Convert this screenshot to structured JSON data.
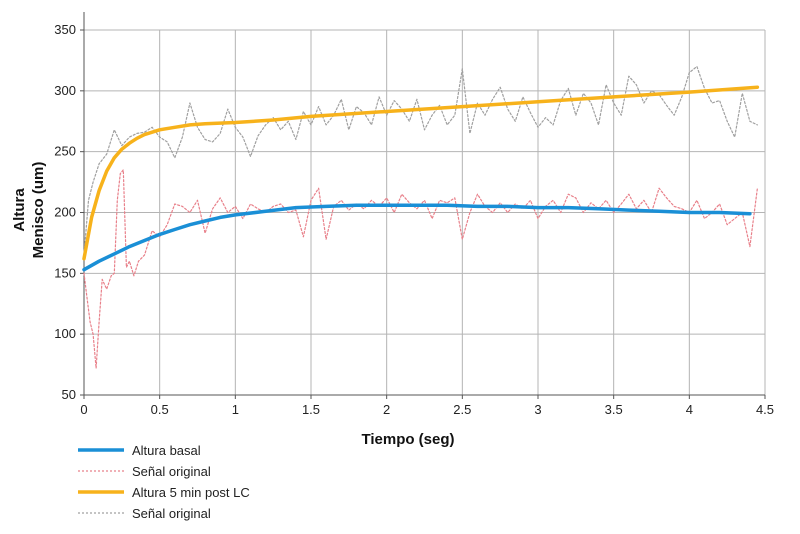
{
  "chart_data": {
    "type": "line",
    "title": "",
    "xlabel": "Tiempo (seg)",
    "ylabel_lines": [
      "Altura",
      "Menisco (um)"
    ],
    "xlim": [
      0,
      4.5
    ],
    "ylim": [
      50,
      350
    ],
    "x_ticks": [
      0,
      0.5,
      1,
      1.5,
      2,
      2.5,
      3,
      3.5,
      4,
      4.5
    ],
    "y_ticks": [
      50,
      100,
      150,
      200,
      250,
      300,
      350
    ],
    "x_tick_labels": [
      "0",
      "0.5",
      "1",
      "1.5",
      "2",
      "2.5",
      "3",
      "3.5",
      "4",
      "4.5"
    ],
    "y_tick_labels": [
      "50",
      "100",
      "150",
      "200",
      "250",
      "300",
      "350"
    ],
    "grid": true,
    "legend_position": "bottom-left",
    "series": [
      {
        "name": "Altura basal",
        "color": "#1a8fd6",
        "style": "solid",
        "x": [
          0,
          0.1,
          0.2,
          0.3,
          0.4,
          0.5,
          0.6,
          0.7,
          0.8,
          0.9,
          1.0,
          1.2,
          1.4,
          1.6,
          1.8,
          2.0,
          2.2,
          2.4,
          2.6,
          2.8,
          3.0,
          3.2,
          3.4,
          3.6,
          3.8,
          4.0,
          4.2,
          4.4
        ],
        "y": [
          153,
          160,
          166,
          172,
          177,
          182,
          186,
          190,
          193,
          196,
          198,
          201,
          204,
          205,
          206,
          206,
          206,
          206,
          205,
          205,
          204,
          204,
          203,
          202,
          201,
          200,
          200,
          199
        ]
      },
      {
        "name": "Señal original",
        "color": "#e8808a",
        "style": "dotted",
        "x": [
          0,
          0.02,
          0.04,
          0.06,
          0.08,
          0.1,
          0.12,
          0.15,
          0.18,
          0.2,
          0.22,
          0.24,
          0.26,
          0.28,
          0.3,
          0.33,
          0.36,
          0.4,
          0.45,
          0.5,
          0.55,
          0.6,
          0.65,
          0.7,
          0.75,
          0.8,
          0.85,
          0.9,
          0.95,
          1.0,
          1.05,
          1.1,
          1.15,
          1.2,
          1.25,
          1.3,
          1.35,
          1.4,
          1.45,
          1.5,
          1.55,
          1.6,
          1.65,
          1.7,
          1.75,
          1.8,
          1.85,
          1.9,
          1.95,
          2.0,
          2.05,
          2.1,
          2.15,
          2.2,
          2.25,
          2.3,
          2.35,
          2.4,
          2.45,
          2.5,
          2.55,
          2.6,
          2.65,
          2.7,
          2.75,
          2.8,
          2.85,
          2.9,
          2.95,
          3.0,
          3.05,
          3.1,
          3.15,
          3.2,
          3.25,
          3.3,
          3.35,
          3.4,
          3.45,
          3.5,
          3.55,
          3.6,
          3.65,
          3.7,
          3.75,
          3.8,
          3.85,
          3.9,
          3.95,
          4.0,
          4.05,
          4.1,
          4.15,
          4.2,
          4.25,
          4.3,
          4.35,
          4.4,
          4.45
        ],
        "y": [
          150,
          130,
          110,
          100,
          72,
          110,
          145,
          137,
          148,
          150,
          210,
          232,
          235,
          155,
          160,
          148,
          160,
          165,
          185,
          180,
          190,
          207,
          205,
          200,
          210,
          183,
          203,
          212,
          200,
          205,
          195,
          207,
          203,
          200,
          205,
          207,
          200,
          202,
          180,
          210,
          220,
          178,
          205,
          210,
          202,
          207,
          203,
          210,
          205,
          212,
          200,
          215,
          208,
          203,
          210,
          195,
          210,
          208,
          212,
          178,
          200,
          215,
          205,
          200,
          208,
          200,
          207,
          203,
          210,
          195,
          205,
          210,
          200,
          215,
          212,
          200,
          208,
          203,
          210,
          200,
          207,
          215,
          203,
          210,
          200,
          220,
          212,
          205,
          203,
          200,
          210,
          195,
          200,
          207,
          190,
          195,
          200,
          172,
          220
        ]
      },
      {
        "name": "Altura 5 min post LC",
        "color": "#f7b21b",
        "style": "solid",
        "x": [
          0,
          0.05,
          0.1,
          0.15,
          0.2,
          0.25,
          0.3,
          0.35,
          0.4,
          0.5,
          0.6,
          0.7,
          0.8,
          1.0,
          1.25,
          1.5,
          2.0,
          2.5,
          3.0,
          3.5,
          4.0,
          4.45
        ],
        "y": [
          162,
          196,
          218,
          234,
          245,
          252,
          257,
          261,
          264,
          268,
          270,
          272,
          273,
          274,
          276,
          279,
          283,
          287,
          291,
          295,
          299,
          303
        ]
      },
      {
        "name": "Señal original",
        "color": "#a0a0a0",
        "style": "dotted",
        "x": [
          0,
          0.03,
          0.06,
          0.1,
          0.15,
          0.2,
          0.25,
          0.3,
          0.35,
          0.4,
          0.45,
          0.5,
          0.55,
          0.6,
          0.65,
          0.7,
          0.75,
          0.8,
          0.85,
          0.9,
          0.95,
          1.0,
          1.05,
          1.1,
          1.15,
          1.2,
          1.25,
          1.3,
          1.35,
          1.4,
          1.45,
          1.5,
          1.55,
          1.6,
          1.65,
          1.7,
          1.75,
          1.8,
          1.85,
          1.9,
          1.95,
          2.0,
          2.05,
          2.1,
          2.15,
          2.2,
          2.25,
          2.3,
          2.35,
          2.4,
          2.45,
          2.5,
          2.55,
          2.6,
          2.65,
          2.7,
          2.75,
          2.8,
          2.85,
          2.9,
          2.95,
          3.0,
          3.05,
          3.1,
          3.15,
          3.2,
          3.25,
          3.3,
          3.35,
          3.4,
          3.45,
          3.5,
          3.55,
          3.6,
          3.65,
          3.7,
          3.75,
          3.8,
          3.85,
          3.9,
          3.95,
          4.0,
          4.05,
          4.1,
          4.15,
          4.2,
          4.25,
          4.3,
          4.35,
          4.4,
          4.45
        ],
        "y": [
          165,
          210,
          225,
          240,
          248,
          268,
          255,
          262,
          265,
          266,
          270,
          262,
          258,
          245,
          262,
          290,
          270,
          260,
          258,
          265,
          285,
          270,
          262,
          246,
          263,
          272,
          278,
          268,
          275,
          260,
          283,
          272,
          287,
          272,
          280,
          293,
          268,
          287,
          282,
          272,
          295,
          280,
          292,
          285,
          275,
          293,
          268,
          280,
          288,
          272,
          280,
          318,
          265,
          290,
          280,
          293,
          303,
          285,
          275,
          295,
          282,
          270,
          278,
          272,
          292,
          302,
          280,
          298,
          290,
          272,
          305,
          290,
          280,
          312,
          305,
          290,
          300,
          297,
          288,
          280,
          295,
          315,
          320,
          302,
          290,
          292,
          275,
          262,
          298,
          275,
          272
        ]
      }
    ]
  }
}
